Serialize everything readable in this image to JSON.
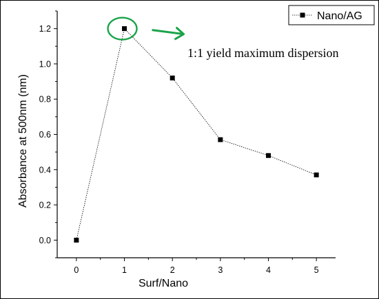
{
  "chart_data": {
    "type": "line",
    "series": [
      {
        "name": "Nano/AG",
        "x": [
          0,
          1,
          2,
          3,
          4,
          5
        ],
        "y": [
          0.0,
          1.2,
          0.92,
          0.57,
          0.48,
          0.37
        ],
        "marker": "square",
        "line_style": "dotted",
        "color": "#000000"
      }
    ],
    "xlabel": "Surf/Nano",
    "ylabel": "Absorbance at 500nm (nm)",
    "xlim": [
      -0.4,
      5.4
    ],
    "ylim": [
      -0.1,
      1.3
    ],
    "xticks": [
      "0",
      "1",
      "2",
      "3",
      "4",
      "5"
    ],
    "yticks": [
      "0.0",
      "0.2",
      "0.4",
      "0.6",
      "0.8",
      "1.0",
      "1.2"
    ],
    "legend_placement": "top-right",
    "grid": false,
    "annotation": {
      "text": "1:1 yield maximum dispersion",
      "x": 1,
      "y": 1.2,
      "highlight_color": "#1aa34a"
    }
  }
}
